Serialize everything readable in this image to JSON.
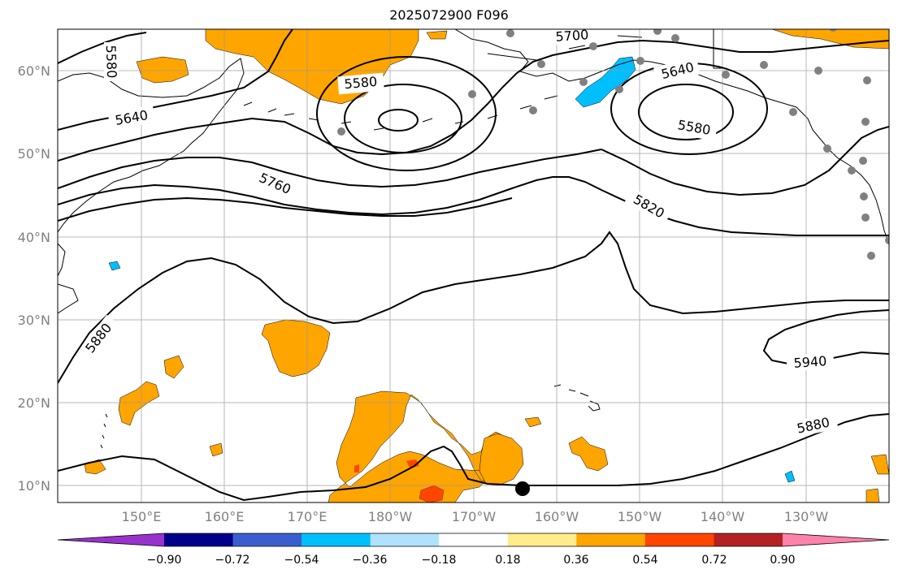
{
  "title": "2025072900 F096",
  "map": {
    "lat_labels": [
      "60°N",
      "50°N",
      "40°N",
      "30°N",
      "20°N",
      "10°N"
    ],
    "lon_labels": [
      "150°E",
      "160°E",
      "170°E",
      "180°W",
      "170°W",
      "160°W",
      "150°W",
      "140°W",
      "130°W"
    ],
    "contour_labels": [
      "5580",
      "5640",
      "5760",
      "5580",
      "5700",
      "5640",
      "5580",
      "5820",
      "5880",
      "5940",
      "5880"
    ],
    "fill_colors": {
      "orange": "#ffa500",
      "red_orange": "#ff4500",
      "light_orange": "#ffa500",
      "cyan": "#00bfff"
    }
  },
  "colorbar": {
    "colors": [
      "#9932cc",
      "#00008b",
      "#3a5fcd",
      "#00bfff",
      "#b0e2ff",
      "#ffffff",
      "#ffec8b",
      "#ffa500",
      "#ff4500",
      "#b22222",
      "#ff82ab"
    ],
    "labels": [
      "−0.90",
      "−0.72",
      "−0.54",
      "−0.36",
      "−0.18",
      "0.18",
      "0.36",
      "0.54",
      "0.72",
      "0.90"
    ]
  }
}
